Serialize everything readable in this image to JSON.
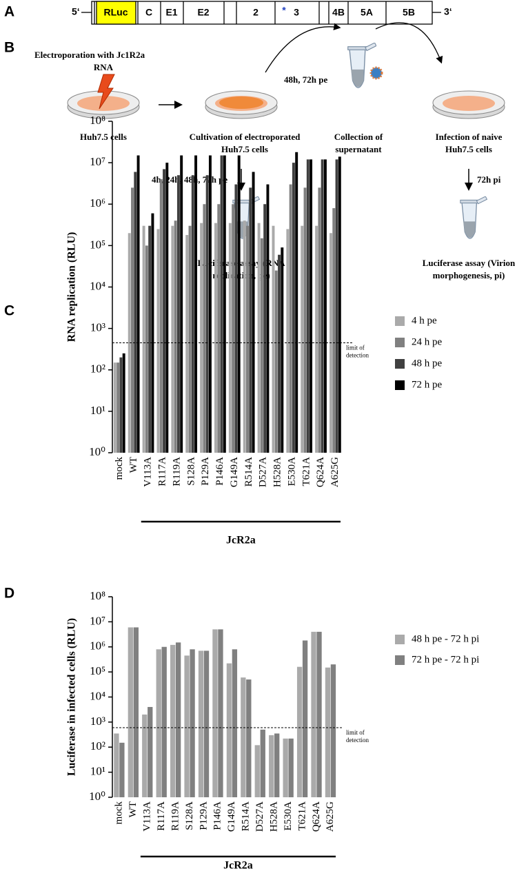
{
  "panel_a": {
    "label": "A",
    "five_prime": "5‘",
    "three_prime": "3‘",
    "rluc": "RLuc",
    "c": "C",
    "e1": "E1",
    "e2": "E2",
    "ns2": "2",
    "star": "*",
    "ns3": "3",
    "ns4b": "4B",
    "ns5a": "5A",
    "ns5b": "5B"
  },
  "panel_b": {
    "label": "B",
    "electroporation": "Electroporation with Jc1R2a",
    "rna": "RNA",
    "huh": "Huh7.5 cells",
    "cultivation": [
      "Cultivation of electroporated",
      "Huh7.5 cells"
    ],
    "collect_time": "48h, 72h pe",
    "collection": [
      "Collection of",
      "supernatant"
    ],
    "infection": [
      "Infection of naive",
      "Huh7.5 cells"
    ],
    "pe_times": "4h, 24h, 48h, 72h pe",
    "pi_time": "72h pi",
    "assay_pe": [
      "Luciferase assay (RNA",
      "replication, pe)"
    ],
    "assay_pi": [
      "Luciferase assay (Virion",
      "morphogenesis, pi)"
    ]
  },
  "chart_data": [
    {
      "type": "bar",
      "label": "C",
      "y_label": "RNA replication (RLU)",
      "log_scale": true,
      "group_label": "JcR2a",
      "detection_limit": 450,
      "detection_label": [
        "limit of",
        "detection"
      ],
      "categories": [
        "mock",
        "WT",
        "V113A",
        "R117A",
        "R119A",
        "S128A",
        "P129A",
        "P146A",
        "G149A",
        "R514A",
        "D527A",
        "H528A",
        "E530A",
        "T621A",
        "Q624A",
        "A625G"
      ],
      "series": [
        {
          "name": "4 h pe",
          "color": "#aaaaaa",
          "values": [
            150,
            200000,
            300000,
            250000,
            300000,
            180000,
            350000,
            350000,
            350000,
            400000,
            350000,
            300000,
            250000,
            300000,
            300000,
            200000
          ]
        },
        {
          "name": "24 h pe",
          "color": "#808080",
          "values": [
            150,
            2500000,
            100000,
            4000000,
            400000,
            300000,
            1000000,
            1000000,
            1000000,
            300000,
            150000,
            25000,
            3000000,
            2500000,
            2500000,
            800000
          ]
        },
        {
          "name": "48 h pe",
          "color": "#404040",
          "values": [
            200,
            6000000,
            300000,
            7000000,
            5000000,
            5000000,
            5000000,
            15000000,
            3000000,
            2500000,
            1000000,
            60000,
            10000000,
            12000000,
            12000000,
            12000000
          ]
        },
        {
          "name": "72 h pe",
          "color": "#000000",
          "values": [
            250,
            15000000,
            600000,
            10000000,
            15000000,
            15000000,
            15000000,
            15000000,
            15000000,
            6000000,
            3000000,
            90000,
            18000000,
            12000000,
            12000000,
            14000000
          ]
        }
      ],
      "ylim": [
        1,
        100000000
      ],
      "yticks": [
        {
          "value": 1,
          "label": "10⁰"
        },
        {
          "value": 10,
          "label": "10¹"
        },
        {
          "value": 100,
          "label": "10²"
        },
        {
          "value": 1000,
          "label": "10³"
        },
        {
          "value": 10000,
          "label": "10⁴"
        },
        {
          "value": 100000,
          "label": "10⁵"
        },
        {
          "value": 1000000,
          "label": "10⁶"
        },
        {
          "value": 10000000,
          "label": "10⁷"
        },
        {
          "value": 100000000,
          "label": "10⁸"
        }
      ]
    },
    {
      "type": "bar",
      "label": "D",
      "y_label": "Luciferase in infected cells (RLU)",
      "log_scale": true,
      "group_label": "JcR2a",
      "detection_limit": 600,
      "detection_label": [
        "limit of",
        "detection"
      ],
      "categories": [
        "mock",
        "WT",
        "V113A",
        "R117A",
        "R119A",
        "S128A",
        "P129A",
        "P146A",
        "G149A",
        "R514A",
        "D527A",
        "H528A",
        "E530A",
        "T621A",
        "Q624A",
        "A625G"
      ],
      "series": [
        {
          "name": "48 h pe - 72 h pi",
          "color": "#aaaaaa",
          "values": [
            350,
            6000000,
            2000,
            800000,
            1200000,
            450000,
            700000,
            5000000,
            220000,
            60000,
            120,
            300,
            220,
            160000,
            4000000,
            150000
          ]
        },
        {
          "name": "72 h pe - 72 h pi",
          "color": "#808080",
          "values": [
            150,
            6000000,
            4000,
            1000000,
            1500000,
            800000,
            700000,
            5000000,
            800000,
            50000,
            500,
            350,
            220,
            1800000,
            4000000,
            200000
          ]
        }
      ],
      "ylim": [
        1,
        100000000
      ],
      "yticks": [
        {
          "value": 1,
          "label": "10⁰"
        },
        {
          "value": 10,
          "label": "10¹"
        },
        {
          "value": 100,
          "label": "10²"
        },
        {
          "value": 1000,
          "label": "10³"
        },
        {
          "value": 10000,
          "label": "10⁴"
        },
        {
          "value": 100000,
          "label": "10⁵"
        },
        {
          "value": 1000000,
          "label": "10⁶"
        },
        {
          "value": 10000000,
          "label": "10⁷"
        },
        {
          "value": 100000000,
          "label": "10⁸"
        }
      ]
    }
  ]
}
